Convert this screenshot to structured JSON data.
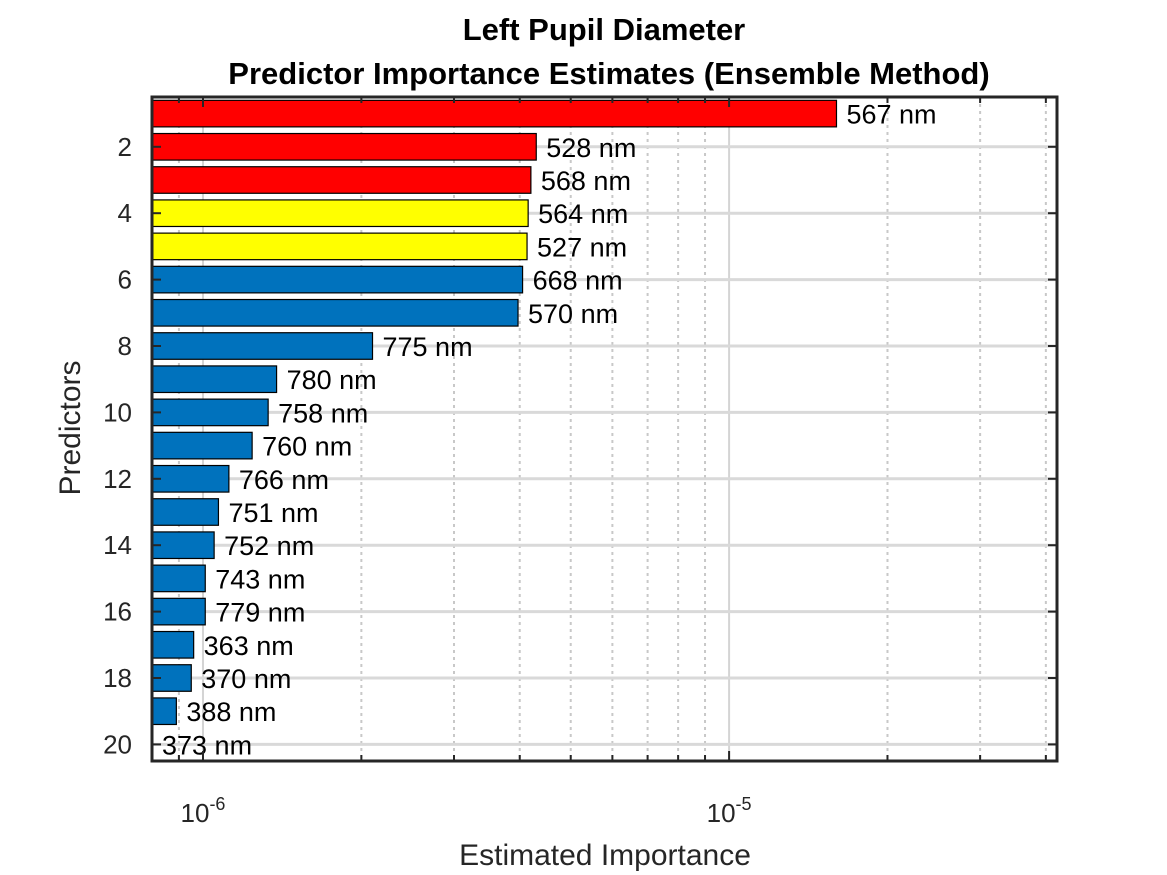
{
  "chart_data": {
    "type": "bar",
    "orientation": "horizontal",
    "title": "Left Pupil Diameter",
    "subtitle": "Predictor Importance Estimates (Ensemble Method)",
    "xlabel": "Estimated Importance",
    "ylabel": "Predictors",
    "xscale": "log",
    "xlim": [
      8e-07,
      4.2e-05
    ],
    "ylim": [
      0.5,
      20.5
    ],
    "x_ticks": [
      {
        "value": 1e-06,
        "base": "10",
        "exp": "-6"
      },
      {
        "value": 1e-05,
        "base": "10",
        "exp": "-5"
      }
    ],
    "y_ticks": [
      2,
      4,
      6,
      8,
      10,
      12,
      14,
      16,
      18,
      20
    ],
    "grid": true,
    "baseline": 8e-07,
    "colors": {
      "red": "#ff0000",
      "yellow": "#ffff00",
      "blue": "#0072bd"
    },
    "bars": [
      {
        "predictor": 1,
        "label": "567 nm",
        "value": 1.6e-05,
        "color": "#ff0000"
      },
      {
        "predictor": 2,
        "label": "528 nm",
        "value": 4.3e-06,
        "color": "#ff0000"
      },
      {
        "predictor": 3,
        "label": "568 nm",
        "value": 4.2e-06,
        "color": "#ff0000"
      },
      {
        "predictor": 4,
        "label": "564 nm",
        "value": 4.15e-06,
        "color": "#ffff00"
      },
      {
        "predictor": 5,
        "label": "527 nm",
        "value": 4.13e-06,
        "color": "#ffff00"
      },
      {
        "predictor": 6,
        "label": "668 nm",
        "value": 4.05e-06,
        "color": "#0072bd"
      },
      {
        "predictor": 7,
        "label": "570 nm",
        "value": 3.97e-06,
        "color": "#0072bd"
      },
      {
        "predictor": 8,
        "label": "775 nm",
        "value": 2.1e-06,
        "color": "#0072bd"
      },
      {
        "predictor": 9,
        "label": "780 nm",
        "value": 1.38e-06,
        "color": "#0072bd"
      },
      {
        "predictor": 10,
        "label": "758 nm",
        "value": 1.33e-06,
        "color": "#0072bd"
      },
      {
        "predictor": 11,
        "label": "760 nm",
        "value": 1.24e-06,
        "color": "#0072bd"
      },
      {
        "predictor": 12,
        "label": "766 nm",
        "value": 1.12e-06,
        "color": "#0072bd"
      },
      {
        "predictor": 13,
        "label": "751 nm",
        "value": 1.07e-06,
        "color": "#0072bd"
      },
      {
        "predictor": 14,
        "label": "752 nm",
        "value": 1.05e-06,
        "color": "#0072bd"
      },
      {
        "predictor": 15,
        "label": "743 nm",
        "value": 1.01e-06,
        "color": "#0072bd"
      },
      {
        "predictor": 16,
        "label": "779 nm",
        "value": 1.01e-06,
        "color": "#0072bd"
      },
      {
        "predictor": 17,
        "label": "363 nm",
        "value": 9.6e-07,
        "color": "#0072bd"
      },
      {
        "predictor": 18,
        "label": "370 nm",
        "value": 9.5e-07,
        "color": "#0072bd"
      },
      {
        "predictor": 19,
        "label": "388 nm",
        "value": 8.9e-07,
        "color": "#0072bd"
      },
      {
        "predictor": 20,
        "label": "373 nm",
        "value": 8e-07,
        "color": "#0072bd"
      }
    ]
  }
}
